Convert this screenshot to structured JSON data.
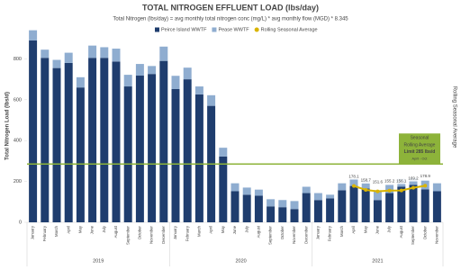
{
  "chart_data": {
    "type": "stacked_bar",
    "title": "TOTAL NITROGEN EFFLUENT LOAD (lbs/day)",
    "subtitle": "Total Nitrogen (lbs/day) = avg monthly total nitrogen conc (mg/L) * avg monthly flow (MGD) * 8.345",
    "y_label": "Total Nitrogen Load (lbs/d)",
    "y2_label": "Rolling Seasonal Average",
    "categories": [
      "January",
      "February",
      "March",
      "April",
      "May",
      "June",
      "July",
      "August",
      "September",
      "October",
      "November",
      "December",
      "January",
      "February",
      "March",
      "April",
      "May",
      "June",
      "July",
      "August",
      "September",
      "October",
      "November",
      "December",
      "January",
      "February",
      "March",
      "April",
      "May",
      "June",
      "July",
      "August",
      "September",
      "October",
      "November"
    ],
    "years": [
      "2019",
      "2020",
      "2021"
    ],
    "series": [
      {
        "name": "Peirce Island WWTF",
        "color": "#1f3d6e",
        "values": [
          890,
          805,
          755,
          780,
          660,
          805,
          805,
          787,
          665,
          718,
          726,
          790,
          652,
          700,
          626,
          570,
          322,
          152,
          135,
          130,
          78,
          74,
          65,
          143,
          109,
          117,
          157,
          178,
          165,
          109,
          143,
          174,
          183,
          161,
          152
        ]
      },
      {
        "name": "Pease WWTF",
        "color": "#8fadd0",
        "values": [
          50,
          40,
          40,
          50,
          50,
          60,
          52,
          63,
          57,
          57,
          39,
          70,
          65,
          57,
          39,
          52,
          43,
          39,
          35,
          30,
          35,
          35,
          39,
          31,
          34,
          18,
          34,
          35,
          39,
          48,
          40,
          39,
          34,
          43,
          39
        ]
      },
      {
        "name": "Rolling Seasonal Average",
        "color": "#d9b400",
        "type": "line",
        "values": [
          null,
          null,
          null,
          null,
          null,
          null,
          null,
          null,
          null,
          null,
          null,
          null,
          null,
          null,
          null,
          null,
          null,
          null,
          null,
          null,
          null,
          null,
          null,
          null,
          null,
          null,
          null,
          178.1,
          158.7,
          151.6,
          155.2,
          156.1,
          169.2,
          178.9,
          null
        ]
      }
    ],
    "limit_line": {
      "value": 285,
      "color": "#8db33a"
    },
    "annotation": [
      "Seasonal",
      "Rolling Average",
      "Limit 285 lbs/d",
      "April - Oct"
    ],
    "ylim": [
      0,
      1000
    ],
    "yticks": [
      0,
      200,
      400,
      600,
      800
    ]
  }
}
